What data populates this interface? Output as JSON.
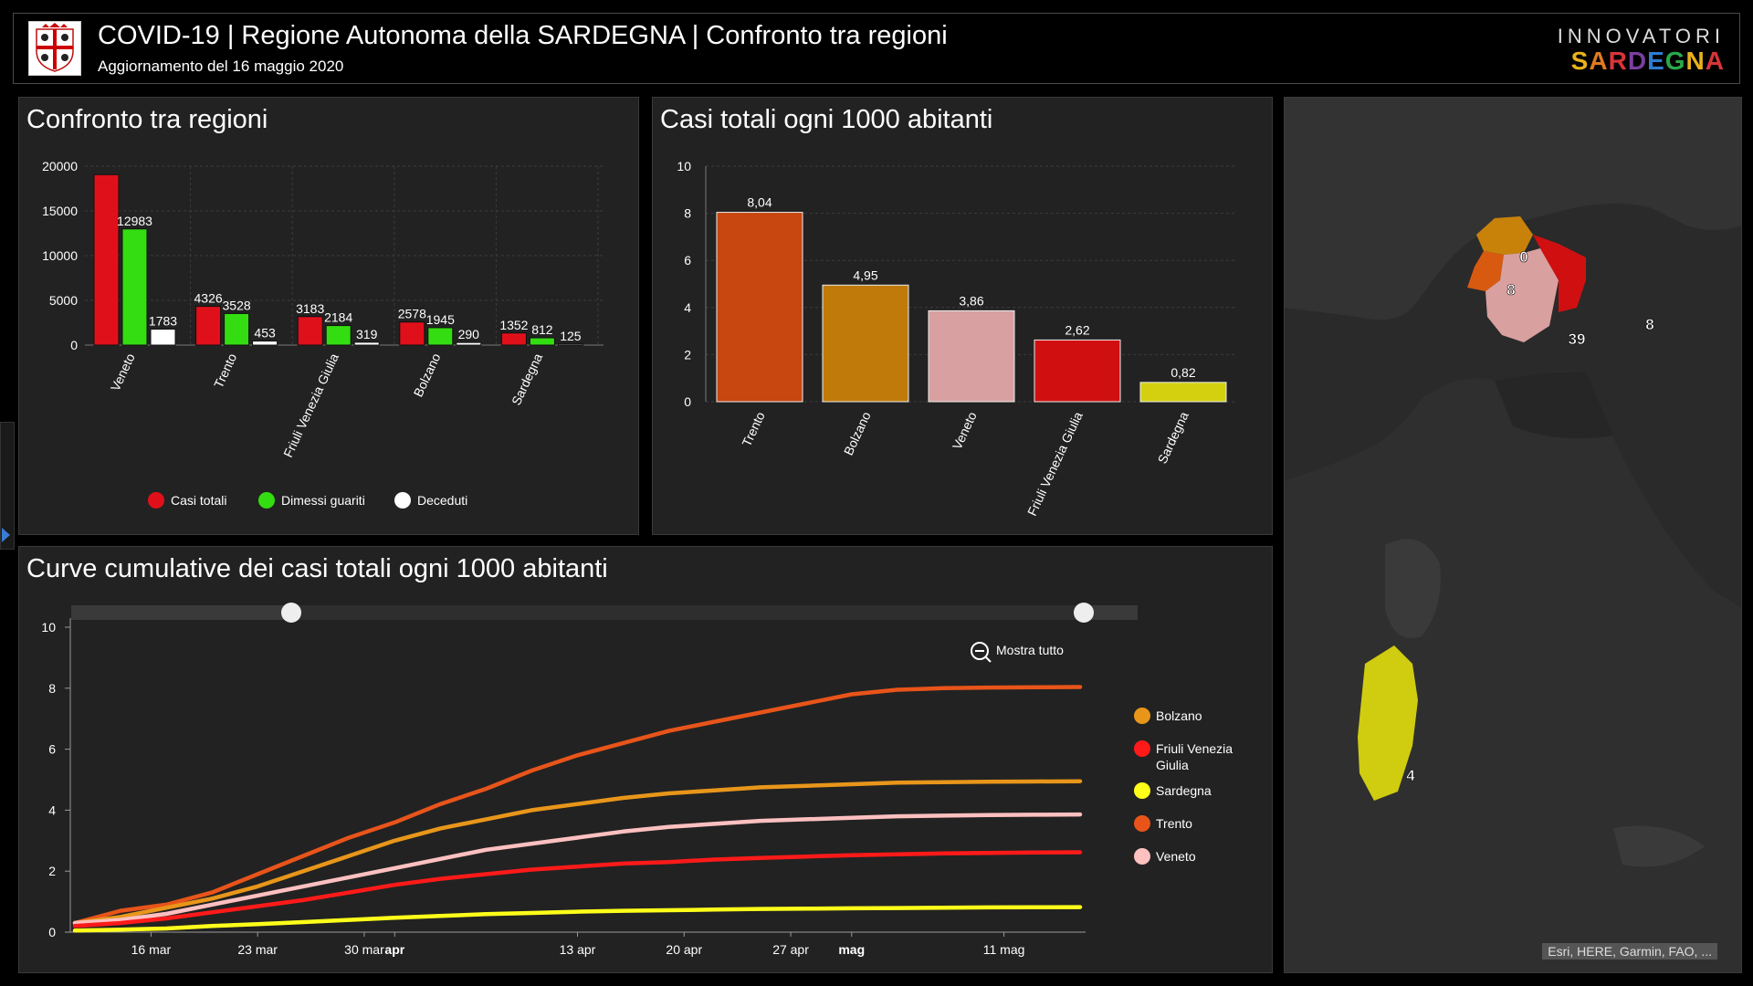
{
  "header": {
    "title": "COVID-19 | Regione Autonoma della SARDEGNA | Confronto tra regioni",
    "subtitle": "Aggiornamento del 16 maggio 2020",
    "brand_top": "INNOVATORI",
    "brand_bottom": "SARDEGNA",
    "brand_colors": [
      "#e8b21c",
      "#e07a1e",
      "#d9343a",
      "#7a3fa0",
      "#2f7bd0",
      "#2aa84a",
      "#e8b21c",
      "#d9343a"
    ]
  },
  "panels": {
    "p1_title": "Confronto tra regioni",
    "p2_title": "Casi totali ogni 1000 abitanti",
    "p3_title": "Curve cumulative dei casi totali ogni 1000 abitanti"
  },
  "legend1": [
    {
      "label": "Casi totali",
      "color": "#e0101a"
    },
    {
      "label": "Dimessi guariti",
      "color": "#33dd11"
    },
    {
      "label": "Deceduti",
      "color": "#ffffff"
    }
  ],
  "legend3": [
    {
      "label": "Bolzano",
      "color": "#e8961a"
    },
    {
      "label": "Friuli Venezia Giulia",
      "color": "#ff1a1a"
    },
    {
      "label": "Sardegna",
      "color": "#ffff1a"
    },
    {
      "label": "Trento",
      "color": "#e8541a"
    },
    {
      "label": "Veneto",
      "color": "#ffc0c0"
    }
  ],
  "zoom_label": "Mostra tutto",
  "map": {
    "labels": [
      {
        "text": "0"
      },
      {
        "text": "8"
      },
      {
        "text": "39"
      },
      {
        "text": "8"
      },
      {
        "text": "4"
      }
    ],
    "attribution": "Esri, HERE, Garmin, FAO, ..."
  },
  "chart_data": [
    {
      "type": "bar",
      "title": "Confronto tra regioni",
      "categories": [
        "Veneto",
        "Trento",
        "Friuli Venezia Giulia",
        "Bolzano",
        "Sardegna"
      ],
      "series": [
        {
          "name": "Casi totali",
          "color": "#e0101a",
          "values": [
            19051,
            4326,
            3183,
            2578,
            1352
          ],
          "labels": [
            "",
            "4326",
            "3183",
            "2578",
            "1352"
          ]
        },
        {
          "name": "Dimessi guariti",
          "color": "#33dd11",
          "values": [
            12983,
            3528,
            2184,
            1945,
            812
          ],
          "labels": [
            "12983",
            "3528",
            "2184",
            "1945",
            "812"
          ]
        },
        {
          "name": "Deceduti",
          "color": "#ffffff",
          "values": [
            1783,
            453,
            319,
            290,
            125
          ],
          "labels": [
            "1783",
            "453",
            "319",
            "290",
            "125"
          ]
        }
      ],
      "ylim": [
        0,
        20000
      ],
      "yticks": [
        "0",
        "5000",
        "10000",
        "15000",
        "20000"
      ],
      "grid": true,
      "legend": "bottom"
    },
    {
      "type": "bar",
      "title": "Casi totali ogni 1000 abitanti",
      "categories": [
        "Trento",
        "Bolzano",
        "Veneto",
        "Friuli Venezia Giulia",
        "Sardegna"
      ],
      "values": [
        8.04,
        4.95,
        3.86,
        2.62,
        0.82
      ],
      "labels": [
        "8,04",
        "4,95",
        "3,86",
        "2,62",
        "0,82"
      ],
      "colors": [
        "#c8460f",
        "#c07a0a",
        "#d8a0a0",
        "#d01010",
        "#d4d010"
      ],
      "ylim": [
        0,
        10
      ],
      "yticks": [
        "0",
        "2",
        "4",
        "6",
        "8",
        "10"
      ],
      "grid": true
    },
    {
      "type": "line",
      "title": "Curve cumulative dei casi totali ogni 1000 abitanti",
      "x_labels": [
        "16 mar",
        "23 mar",
        "30 mar",
        "apr",
        "13 apr",
        "20 apr",
        "27 apr",
        "mag",
        "11 mag"
      ],
      "x_label_bold": [
        false,
        false,
        false,
        true,
        false,
        false,
        false,
        true,
        false
      ],
      "x_range": [
        "2020-03-11",
        "2020-05-16"
      ],
      "ylim": [
        0,
        10
      ],
      "yticks": [
        "0",
        "2",
        "4",
        "6",
        "8",
        "10"
      ],
      "legend": "right",
      "series": [
        {
          "name": "Trento",
          "color": "#e8541a",
          "x": [
            "2020-03-11",
            "2020-03-14",
            "2020-03-17",
            "2020-03-20",
            "2020-03-23",
            "2020-03-26",
            "2020-03-29",
            "2020-04-01",
            "2020-04-04",
            "2020-04-07",
            "2020-04-10",
            "2020-04-13",
            "2020-04-16",
            "2020-04-19",
            "2020-04-22",
            "2020-04-25",
            "2020-04-28",
            "2020-05-01",
            "2020-05-04",
            "2020-05-07",
            "2020-05-10",
            "2020-05-13",
            "2020-05-16"
          ],
          "y": [
            0.3,
            0.7,
            0.9,
            1.3,
            1.9,
            2.5,
            3.1,
            3.6,
            4.2,
            4.7,
            5.3,
            5.8,
            6.2,
            6.6,
            6.9,
            7.2,
            7.5,
            7.8,
            7.95,
            8.0,
            8.02,
            8.03,
            8.04
          ]
        },
        {
          "name": "Bolzano",
          "color": "#e8961a",
          "x": [
            "2020-03-11",
            "2020-03-14",
            "2020-03-17",
            "2020-03-20",
            "2020-03-23",
            "2020-03-26",
            "2020-03-29",
            "2020-04-01",
            "2020-04-04",
            "2020-04-07",
            "2020-04-10",
            "2020-04-13",
            "2020-04-16",
            "2020-04-19",
            "2020-04-22",
            "2020-04-25",
            "2020-04-28",
            "2020-05-01",
            "2020-05-04",
            "2020-05-07",
            "2020-05-10",
            "2020-05-13",
            "2020-05-16"
          ],
          "y": [
            0.3,
            0.5,
            0.8,
            1.1,
            1.5,
            2.0,
            2.5,
            3.0,
            3.4,
            3.7,
            4.0,
            4.2,
            4.4,
            4.55,
            4.65,
            4.75,
            4.8,
            4.85,
            4.9,
            4.92,
            4.93,
            4.94,
            4.95
          ]
        },
        {
          "name": "Veneto",
          "color": "#ffc0c0",
          "x": [
            "2020-03-11",
            "2020-03-14",
            "2020-03-17",
            "2020-03-20",
            "2020-03-23",
            "2020-03-26",
            "2020-03-29",
            "2020-04-01",
            "2020-04-04",
            "2020-04-07",
            "2020-04-10",
            "2020-04-13",
            "2020-04-16",
            "2020-04-19",
            "2020-04-22",
            "2020-04-25",
            "2020-04-28",
            "2020-05-01",
            "2020-05-04",
            "2020-05-07",
            "2020-05-10",
            "2020-05-13",
            "2020-05-16"
          ],
          "y": [
            0.3,
            0.4,
            0.6,
            0.9,
            1.2,
            1.5,
            1.8,
            2.1,
            2.4,
            2.7,
            2.9,
            3.1,
            3.3,
            3.45,
            3.55,
            3.65,
            3.7,
            3.75,
            3.8,
            3.82,
            3.84,
            3.85,
            3.86
          ]
        },
        {
          "name": "Friuli Venezia Giulia",
          "color": "#ff1a1a",
          "x": [
            "2020-03-11",
            "2020-03-14",
            "2020-03-17",
            "2020-03-20",
            "2020-03-23",
            "2020-03-26",
            "2020-03-29",
            "2020-04-01",
            "2020-04-04",
            "2020-04-07",
            "2020-04-10",
            "2020-04-13",
            "2020-04-16",
            "2020-04-19",
            "2020-04-22",
            "2020-04-25",
            "2020-04-28",
            "2020-05-01",
            "2020-05-04",
            "2020-05-07",
            "2020-05-10",
            "2020-05-13",
            "2020-05-16"
          ],
          "y": [
            0.2,
            0.3,
            0.45,
            0.65,
            0.85,
            1.05,
            1.3,
            1.55,
            1.75,
            1.9,
            2.05,
            2.15,
            2.25,
            2.3,
            2.38,
            2.43,
            2.48,
            2.52,
            2.55,
            2.58,
            2.6,
            2.61,
            2.62
          ]
        },
        {
          "name": "Sardegna",
          "color": "#ffff1a",
          "x": [
            "2020-03-11",
            "2020-03-14",
            "2020-03-17",
            "2020-03-20",
            "2020-03-23",
            "2020-03-26",
            "2020-03-29",
            "2020-04-01",
            "2020-04-04",
            "2020-04-07",
            "2020-04-10",
            "2020-04-13",
            "2020-04-16",
            "2020-04-19",
            "2020-04-22",
            "2020-04-25",
            "2020-04-28",
            "2020-05-01",
            "2020-05-04",
            "2020-05-07",
            "2020-05-10",
            "2020-05-13",
            "2020-05-16"
          ],
          "y": [
            0.05,
            0.08,
            0.12,
            0.2,
            0.26,
            0.33,
            0.4,
            0.47,
            0.53,
            0.59,
            0.63,
            0.67,
            0.7,
            0.72,
            0.74,
            0.76,
            0.77,
            0.78,
            0.79,
            0.8,
            0.81,
            0.815,
            0.82
          ]
        }
      ]
    }
  ]
}
